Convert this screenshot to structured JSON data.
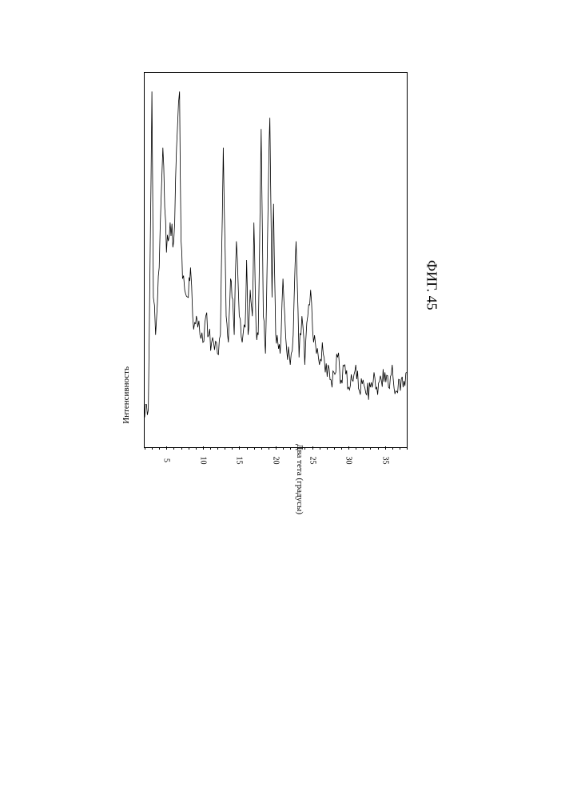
{
  "figure": {
    "caption": "ФИГ. 45",
    "xrd": {
      "type": "line",
      "xlabel": "Два тета (градусы)",
      "ylabel": "Интенсивность",
      "xlim": [
        2,
        38
      ],
      "ylim": [
        0,
        100
      ],
      "xtick_start": 5,
      "xtick_step": 5,
      "minor_tick_step": 1,
      "xticks": [
        5,
        10,
        15,
        20,
        25,
        30,
        35
      ],
      "background_color": "#ffffff",
      "border_color": "#000000",
      "line_color": "#000000",
      "line_width": 0.8,
      "label_fontsize": 11,
      "tick_fontsize": 10,
      "tick_len_major": 4,
      "tick_len_minor": 2,
      "x": [
        2,
        2.5,
        3,
        3.2,
        3.5,
        4,
        4.5,
        5,
        5.5,
        6,
        6.5,
        6.8,
        7,
        7.2,
        7.5,
        8,
        8.3,
        8.6,
        9,
        9.3,
        9.6,
        10,
        10.4,
        10.8,
        11.2,
        11.6,
        12,
        12.4,
        12.8,
        13.2,
        13.5,
        13.8,
        14,
        14.3,
        14.6,
        15,
        15.4,
        15.8,
        16,
        16.2,
        16.5,
        16.8,
        17,
        17.3,
        17.6,
        18,
        18.3,
        18.6,
        19,
        19.2,
        19.5,
        19.7,
        20,
        20.3,
        20.6,
        21,
        21.5,
        22,
        22.4,
        22.8,
        23.2,
        23.6,
        24,
        24.4,
        24.8,
        25.2,
        25.6,
        26,
        26.4,
        26.8,
        27.2,
        27.6,
        28,
        28.5,
        29,
        29.5,
        30,
        30.5,
        31,
        31.5,
        32,
        32.5,
        33,
        33.5,
        34,
        34.5,
        35,
        35.5,
        36,
        36.5,
        37,
        37.5,
        38
      ],
      "y": [
        8,
        10,
        95,
        40,
        30,
        48,
        80,
        52,
        60,
        55,
        85,
        95,
        55,
        45,
        42,
        40,
        48,
        35,
        33,
        32,
        30,
        28,
        35,
        30,
        28,
        26,
        25,
        30,
        80,
        35,
        28,
        45,
        40,
        30,
        55,
        35,
        28,
        32,
        50,
        30,
        42,
        35,
        60,
        32,
        30,
        85,
        35,
        25,
        70,
        88,
        40,
        65,
        30,
        28,
        25,
        45,
        26,
        22,
        30,
        55,
        24,
        35,
        22,
        35,
        42,
        28,
        25,
        22,
        28,
        20,
        22,
        18,
        20,
        24,
        18,
        22,
        16,
        18,
        22,
        15,
        18,
        14,
        16,
        20,
        14,
        18,
        20,
        16,
        22,
        15,
        18,
        16,
        20
      ]
    }
  }
}
